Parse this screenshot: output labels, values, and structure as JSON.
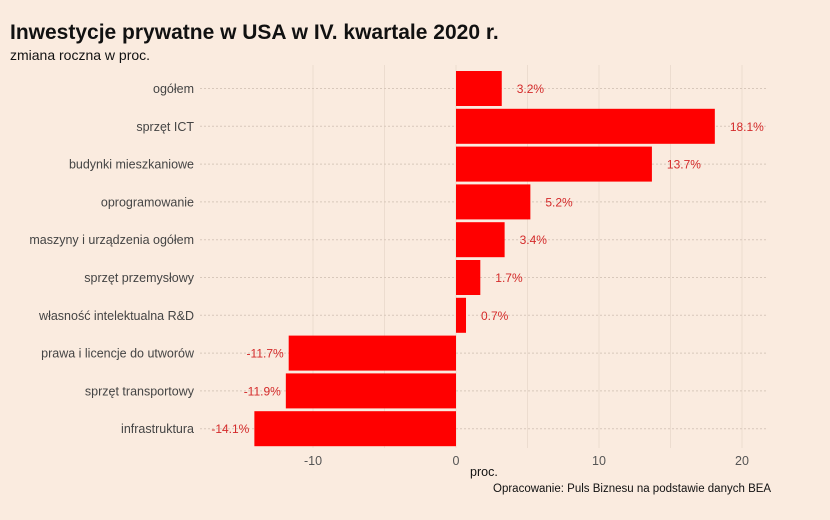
{
  "chart_data": {
    "type": "bar",
    "orientation": "horizontal",
    "title": "Inwestycje prywatne w USA w IV. kwartale 2020 r.",
    "subtitle": "zmiana roczna w proc.",
    "categories": [
      "ogółem",
      "sprzęt ICT",
      "budynki mieszkaniowe",
      "oprogramowanie",
      "maszyny i urządzenia ogółem",
      "sprzęt przemysłowy",
      "własność intelektualna R&D",
      "prawa i licencje do utworów",
      "sprzęt transportowy",
      "infrastruktura"
    ],
    "values": [
      3.2,
      18.1,
      13.7,
      5.2,
      3.4,
      1.7,
      0.7,
      -11.7,
      -11.9,
      -14.1
    ],
    "value_labels": [
      "3.2%",
      "18.1%",
      "13.7%",
      "5.2%",
      "3.4%",
      "1.7%",
      "0.7%",
      "-11.7%",
      "-11.9%",
      "-14.1%"
    ],
    "xlabel": "proc.",
    "ylabel": "",
    "xlim": [
      -14.5,
      22
    ],
    "xticks": [
      -10,
      0,
      10,
      20
    ],
    "xtick_labels": [
      "-10",
      "0",
      "10",
      "20"
    ],
    "grid": true,
    "bar_color": "#ff0000",
    "label_color": "#d42a2a",
    "background": "#faebdf",
    "caption": "Opracowanie: Puls Biznesu na podstawie danych BEA"
  }
}
